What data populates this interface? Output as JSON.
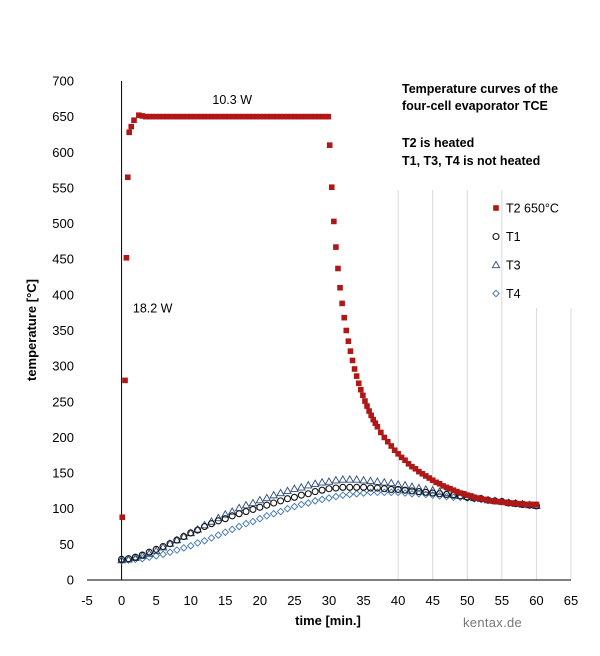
{
  "chart_data": {
    "type": "scatter",
    "title_lines": [
      "Temperature curves of the",
      "four-cell evaporator TCE"
    ],
    "note_lines": [
      "T2 is heated",
      "T1, T3, T4 is not heated"
    ],
    "xlabel": "time [min.]",
    "ylabel": "temperature [°C]",
    "xlim": [
      -5,
      65
    ],
    "ylim": [
      0,
      700
    ],
    "xticks": [
      -5,
      0,
      5,
      10,
      15,
      20,
      25,
      30,
      35,
      40,
      45,
      50,
      55,
      60,
      65
    ],
    "yticks": [
      0,
      50,
      100,
      150,
      200,
      250,
      300,
      350,
      400,
      450,
      500,
      550,
      600,
      650,
      700
    ],
    "grid": {
      "vertical": true,
      "horizontal": false
    },
    "legend_position": "right",
    "annotations": [
      {
        "text": "10.3 W",
        "x": 16,
        "y": 668
      },
      {
        "text": "18.2 W",
        "x": 4.5,
        "y": 375
      }
    ],
    "series": [
      {
        "name": "T2 650°C",
        "marker": "square",
        "color": "#b01818",
        "points": [
          [
            0.1,
            88
          ],
          [
            0.5,
            280
          ],
          [
            0.7,
            452
          ],
          [
            0.9,
            565
          ],
          [
            1.1,
            628
          ],
          [
            1.4,
            636
          ],
          [
            1.8,
            645
          ],
          [
            2.5,
            652
          ],
          [
            3,
            651
          ],
          [
            3.5,
            650
          ],
          [
            4,
            650
          ],
          [
            4.5,
            650
          ],
          [
            5,
            650
          ],
          [
            5.5,
            650
          ],
          [
            6,
            650
          ],
          [
            6.5,
            650
          ],
          [
            7,
            650
          ],
          [
            7.5,
            650
          ],
          [
            8,
            650
          ],
          [
            8.5,
            650
          ],
          [
            9,
            650
          ],
          [
            9.5,
            650
          ],
          [
            10,
            650
          ],
          [
            10.5,
            650
          ],
          [
            11,
            650
          ],
          [
            11.5,
            650
          ],
          [
            12,
            650
          ],
          [
            12.5,
            650
          ],
          [
            13,
            650
          ],
          [
            13.5,
            650
          ],
          [
            14,
            650
          ],
          [
            14.5,
            650
          ],
          [
            15,
            650
          ],
          [
            15.5,
            650
          ],
          [
            16,
            650
          ],
          [
            16.5,
            650
          ],
          [
            17,
            650
          ],
          [
            17.5,
            650
          ],
          [
            18,
            650
          ],
          [
            18.5,
            650
          ],
          [
            19,
            650
          ],
          [
            19.5,
            650
          ],
          [
            20,
            650
          ],
          [
            20.5,
            650
          ],
          [
            21,
            650
          ],
          [
            21.5,
            650
          ],
          [
            22,
            650
          ],
          [
            22.5,
            650
          ],
          [
            23,
            650
          ],
          [
            23.5,
            650
          ],
          [
            24,
            650
          ],
          [
            24.5,
            650
          ],
          [
            25,
            650
          ],
          [
            25.5,
            650
          ],
          [
            26,
            650
          ],
          [
            26.5,
            650
          ],
          [
            27,
            650
          ],
          [
            27.5,
            650
          ],
          [
            28,
            650
          ],
          [
            28.5,
            650
          ],
          [
            29,
            650
          ],
          [
            29.5,
            650
          ],
          [
            29.9,
            650
          ],
          [
            30.1,
            610
          ],
          [
            30.4,
            551
          ],
          [
            30.7,
            503
          ],
          [
            31,
            467
          ],
          [
            31.3,
            437
          ],
          [
            31.6,
            410
          ],
          [
            31.9,
            388
          ],
          [
            32.2,
            368
          ],
          [
            32.5,
            350
          ],
          [
            32.8,
            335
          ],
          [
            33.1,
            321
          ],
          [
            33.4,
            308
          ],
          [
            33.7,
            296
          ],
          [
            34,
            286
          ],
          [
            34.3,
            276
          ],
          [
            34.6,
            267
          ],
          [
            34.9,
            259
          ],
          [
            35.2,
            251
          ],
          [
            35.5,
            244
          ],
          [
            35.8,
            237
          ],
          [
            36.1,
            231
          ],
          [
            36.4,
            225
          ],
          [
            36.7,
            220
          ],
          [
            37,
            215
          ],
          [
            37.5,
            207
          ],
          [
            38,
            200
          ],
          [
            38.5,
            194
          ],
          [
            39,
            188
          ],
          [
            39.5,
            182
          ],
          [
            40,
            177
          ],
          [
            40.5,
            172
          ],
          [
            41,
            168
          ],
          [
            41.5,
            163
          ],
          [
            42,
            159
          ],
          [
            42.5,
            156
          ],
          [
            43,
            152
          ],
          [
            43.5,
            149
          ],
          [
            44,
            146
          ],
          [
            44.5,
            143
          ],
          [
            45,
            140
          ],
          [
            45.5,
            137
          ],
          [
            46,
            135
          ],
          [
            46.5,
            132
          ],
          [
            47,
            130
          ],
          [
            47.5,
            128
          ],
          [
            48,
            126
          ],
          [
            48.5,
            124
          ],
          [
            49,
            122
          ],
          [
            49.5,
            121
          ],
          [
            50,
            119
          ],
          [
            50.5,
            118
          ],
          [
            51,
            116
          ],
          [
            51.5,
            115
          ],
          [
            52,
            114
          ],
          [
            52.5,
            113
          ],
          [
            53,
            112
          ],
          [
            53.5,
            111
          ],
          [
            54,
            110
          ],
          [
            54.5,
            110
          ],
          [
            55,
            109
          ],
          [
            55.5,
            109
          ],
          [
            56,
            108
          ],
          [
            56.5,
            108
          ],
          [
            57,
            107
          ],
          [
            57.5,
            107
          ],
          [
            58,
            107
          ],
          [
            58.5,
            106
          ],
          [
            59,
            106
          ],
          [
            59.5,
            106
          ],
          [
            60,
            106
          ]
        ]
      },
      {
        "name": "T1",
        "marker": "circle",
        "color": "#111111",
        "points": [
          [
            0,
            29
          ],
          [
            1,
            30
          ],
          [
            2,
            32
          ],
          [
            3,
            35
          ],
          [
            4,
            39
          ],
          [
            5,
            43
          ],
          [
            6,
            47
          ],
          [
            7,
            51
          ],
          [
            8,
            56
          ],
          [
            9,
            61
          ],
          [
            10,
            66
          ],
          [
            11,
            70
          ],
          [
            12,
            75
          ],
          [
            13,
            79
          ],
          [
            14,
            83
          ],
          [
            15,
            86
          ],
          [
            16,
            90
          ],
          [
            17,
            93
          ],
          [
            18,
            96
          ],
          [
            19,
            99
          ],
          [
            20,
            102
          ],
          [
            21,
            105
          ],
          [
            22,
            108
          ],
          [
            23,
            111
          ],
          [
            24,
            114
          ],
          [
            25,
            116
          ],
          [
            26,
            119
          ],
          [
            27,
            121
          ],
          [
            28,
            124
          ],
          [
            29,
            126
          ],
          [
            30,
            128
          ],
          [
            31,
            129
          ],
          [
            32,
            130
          ],
          [
            33,
            130
          ],
          [
            34,
            130
          ],
          [
            35,
            130
          ],
          [
            36,
            129
          ],
          [
            37,
            129
          ],
          [
            38,
            128
          ],
          [
            39,
            127
          ],
          [
            40,
            127
          ],
          [
            41,
            126
          ],
          [
            42,
            125
          ],
          [
            43,
            124
          ],
          [
            44,
            123
          ],
          [
            45,
            122
          ],
          [
            46,
            121
          ],
          [
            47,
            120
          ],
          [
            48,
            119
          ],
          [
            49,
            118
          ],
          [
            50,
            116
          ],
          [
            51,
            115
          ],
          [
            52,
            114
          ],
          [
            53,
            112
          ],
          [
            54,
            111
          ],
          [
            55,
            110
          ],
          [
            56,
            108
          ],
          [
            57,
            107
          ],
          [
            58,
            106
          ],
          [
            59,
            105
          ],
          [
            60,
            104
          ]
        ]
      },
      {
        "name": "T3",
        "marker": "triangle",
        "color": "#2a4a7a",
        "points": [
          [
            0,
            28
          ],
          [
            1,
            29
          ],
          [
            2,
            31
          ],
          [
            3,
            34
          ],
          [
            4,
            37
          ],
          [
            5,
            41
          ],
          [
            6,
            46
          ],
          [
            7,
            51
          ],
          [
            8,
            56
          ],
          [
            9,
            61
          ],
          [
            10,
            66
          ],
          [
            11,
            71
          ],
          [
            12,
            77
          ],
          [
            13,
            82
          ],
          [
            14,
            87
          ],
          [
            15,
            92
          ],
          [
            16,
            96
          ],
          [
            17,
            101
          ],
          [
            18,
            105
          ],
          [
            19,
            108
          ],
          [
            20,
            112
          ],
          [
            21,
            115
          ],
          [
            22,
            119
          ],
          [
            23,
            122
          ],
          [
            24,
            125
          ],
          [
            25,
            128
          ],
          [
            26,
            130
          ],
          [
            27,
            133
          ],
          [
            28,
            135
          ],
          [
            29,
            137
          ],
          [
            30,
            138
          ],
          [
            31,
            140
          ],
          [
            32,
            141
          ],
          [
            33,
            141
          ],
          [
            34,
            141
          ],
          [
            35,
            140
          ],
          [
            36,
            139
          ],
          [
            37,
            138
          ],
          [
            38,
            137
          ],
          [
            39,
            136
          ],
          [
            40,
            134
          ],
          [
            41,
            133
          ],
          [
            42,
            131
          ],
          [
            43,
            129
          ],
          [
            44,
            127
          ],
          [
            45,
            126
          ],
          [
            46,
            124
          ],
          [
            47,
            122
          ],
          [
            48,
            120
          ],
          [
            49,
            118
          ],
          [
            50,
            117
          ],
          [
            51,
            115
          ],
          [
            52,
            114
          ],
          [
            53,
            112
          ],
          [
            54,
            111
          ],
          [
            55,
            110
          ],
          [
            56,
            108
          ],
          [
            57,
            107
          ],
          [
            58,
            106
          ],
          [
            59,
            105
          ],
          [
            60,
            104
          ]
        ]
      },
      {
        "name": "T4",
        "marker": "diamond",
        "color": "#3a72b0",
        "points": [
          [
            0,
            27
          ],
          [
            1,
            28
          ],
          [
            2,
            29
          ],
          [
            3,
            30
          ],
          [
            4,
            32
          ],
          [
            5,
            34
          ],
          [
            6,
            36
          ],
          [
            7,
            39
          ],
          [
            8,
            42
          ],
          [
            9,
            45
          ],
          [
            10,
            48
          ],
          [
            11,
            52
          ],
          [
            12,
            55
          ],
          [
            13,
            59
          ],
          [
            14,
            63
          ],
          [
            15,
            67
          ],
          [
            16,
            71
          ],
          [
            17,
            75
          ],
          [
            18,
            79
          ],
          [
            19,
            82
          ],
          [
            20,
            86
          ],
          [
            21,
            90
          ],
          [
            22,
            93
          ],
          [
            23,
            96
          ],
          [
            24,
            100
          ],
          [
            25,
            103
          ],
          [
            26,
            106
          ],
          [
            27,
            108
          ],
          [
            28,
            111
          ],
          [
            29,
            113
          ],
          [
            30,
            115
          ],
          [
            31,
            117
          ],
          [
            32,
            119
          ],
          [
            33,
            120
          ],
          [
            34,
            121
          ],
          [
            35,
            122
          ],
          [
            36,
            123
          ],
          [
            37,
            123
          ],
          [
            38,
            123
          ],
          [
            39,
            123
          ],
          [
            40,
            123
          ],
          [
            41,
            122
          ],
          [
            42,
            121
          ],
          [
            43,
            121
          ],
          [
            44,
            120
          ],
          [
            45,
            119
          ],
          [
            46,
            118
          ],
          [
            47,
            117
          ],
          [
            48,
            116
          ],
          [
            49,
            116
          ],
          [
            50,
            115
          ],
          [
            51,
            114
          ],
          [
            52,
            113
          ],
          [
            53,
            112
          ],
          [
            54,
            111
          ],
          [
            55,
            110
          ],
          [
            56,
            109
          ],
          [
            57,
            108
          ],
          [
            58,
            107
          ],
          [
            59,
            106
          ],
          [
            60,
            105
          ]
        ]
      }
    ]
  },
  "watermark": "kentax.de"
}
